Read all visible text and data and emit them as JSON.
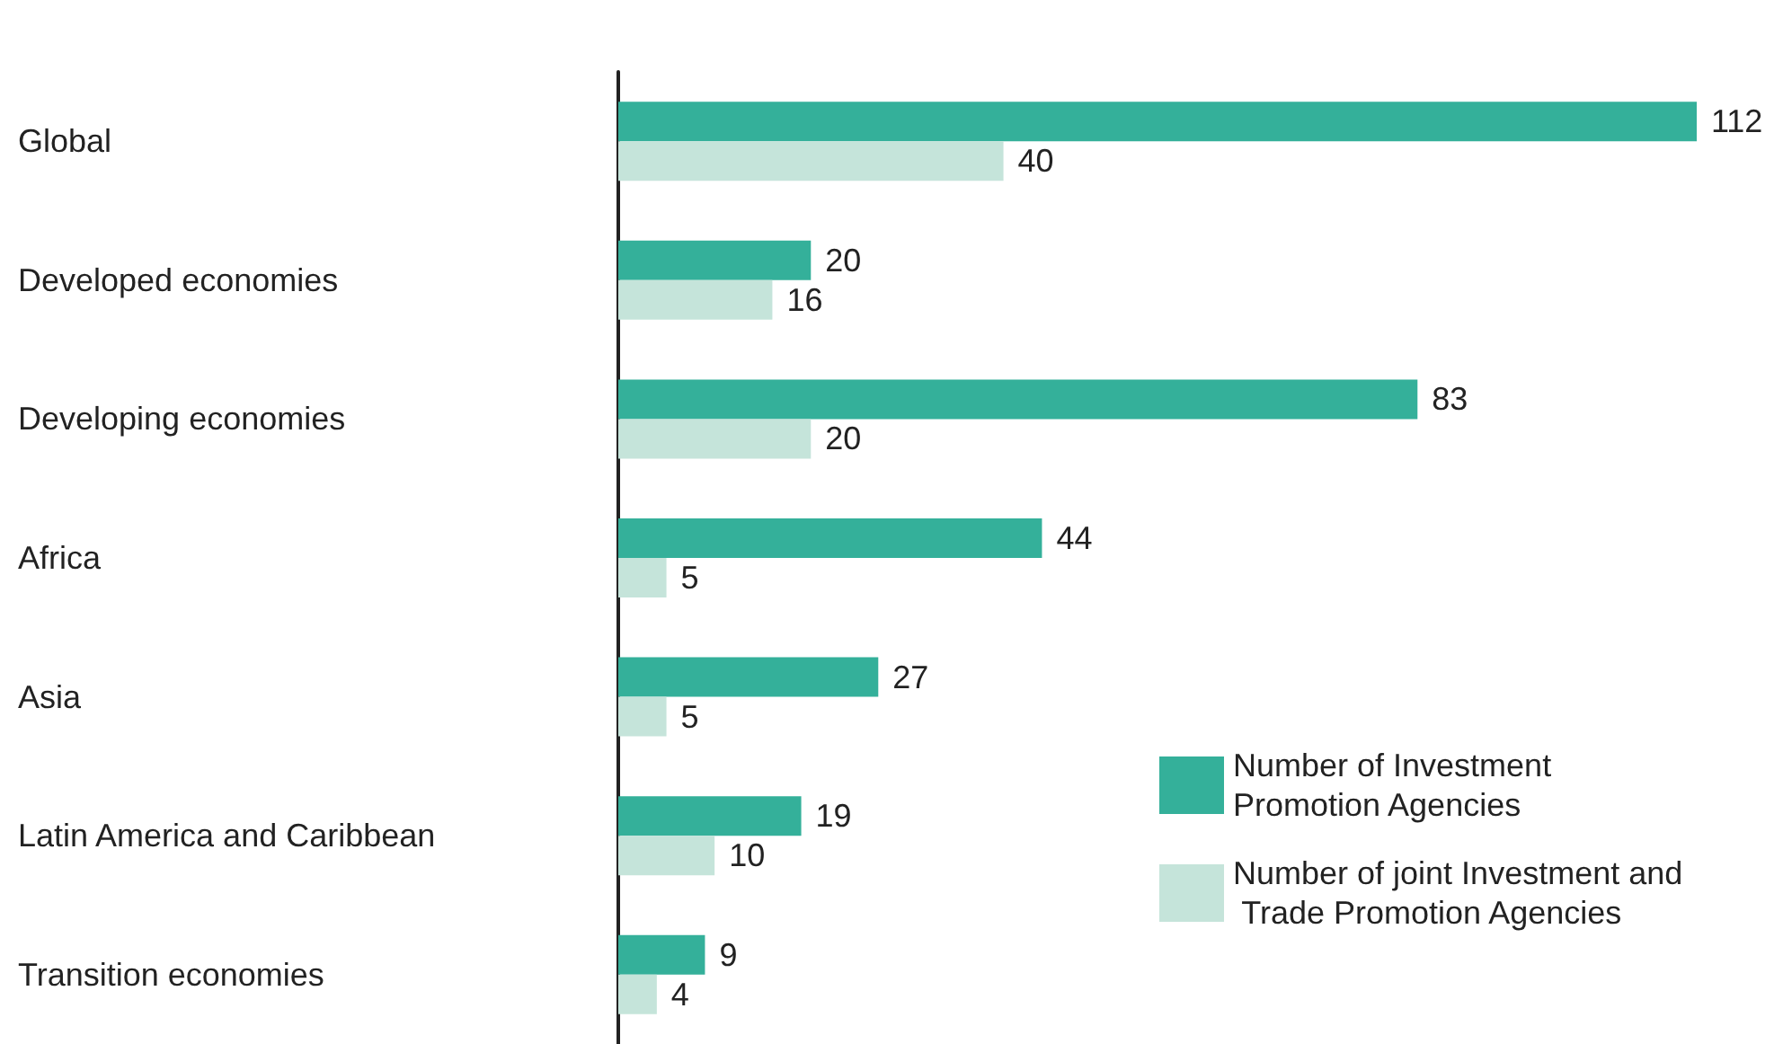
{
  "chart_data": {
    "type": "bar",
    "orientation": "horizontal",
    "data_labels": true,
    "legend": "bottom right",
    "grid": false,
    "categories": [
      "Global",
      "Developed economies",
      "Developing economies",
      "Africa",
      "Asia",
      "Latin America and Caribbean",
      "Transition economies"
    ],
    "series": [
      {
        "name": "Number of Investment Promotion Agencies",
        "color": "#34b09a",
        "values": [
          112,
          20,
          83,
          44,
          27,
          19,
          9
        ]
      },
      {
        "name": "Number of joint Investment and Trade Promotion Agencies",
        "color": "#c5e4da",
        "values": [
          40,
          16,
          20,
          5,
          5,
          10,
          4
        ]
      }
    ]
  }
}
